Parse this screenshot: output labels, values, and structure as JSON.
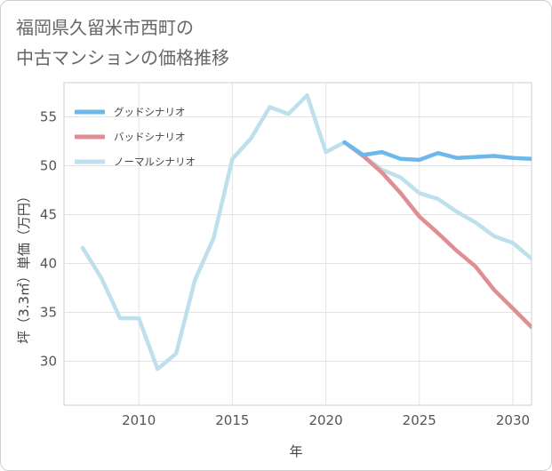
{
  "title": {
    "line1": "福岡県久留米市西町の",
    "line2": "中古マンションの価格推移"
  },
  "chart_data": {
    "type": "line",
    "xlabel": "年",
    "ylabel": "坪（3.3㎡）単価（万円）",
    "xlim": [
      2006,
      2031
    ],
    "ylim": [
      25.5,
      58.5
    ],
    "xticks": [
      2010,
      2015,
      2020,
      2025,
      2030
    ],
    "yticks": [
      30,
      35,
      40,
      45,
      50,
      55
    ],
    "grid": true,
    "legend_position": "top-left",
    "series": [
      {
        "name": "グッドシナリオ",
        "color": "#6cb8ea",
        "x": [
          2021,
          2022,
          2023,
          2024,
          2025,
          2026,
          2027,
          2028,
          2029,
          2030,
          2031
        ],
        "values": [
          52.4,
          51.1,
          51.4,
          50.7,
          50.6,
          51.3,
          50.8,
          50.9,
          51.0,
          50.8,
          50.7
        ]
      },
      {
        "name": "バッドシナリオ",
        "color": "#e08e94",
        "x": [
          2021,
          2022,
          2023,
          2024,
          2025,
          2026,
          2027,
          2028,
          2029,
          2030,
          2031
        ],
        "values": [
          52.4,
          51.0,
          49.3,
          47.2,
          44.8,
          43.1,
          41.3,
          39.7,
          37.3,
          35.4,
          33.5
        ]
      },
      {
        "name": "ノーマルシナリオ",
        "color": "#bde0ec",
        "x": [
          2007,
          2008,
          2009,
          2010,
          2011,
          2012,
          2013,
          2014,
          2015,
          2016,
          2017,
          2018,
          2019,
          2020,
          2021,
          2022,
          2023,
          2024,
          2025,
          2026,
          2027,
          2028,
          2029,
          2030,
          2031
        ],
        "values": [
          41.6,
          38.5,
          34.4,
          34.4,
          29.2,
          30.8,
          38.3,
          42.6,
          50.7,
          52.8,
          56.0,
          55.3,
          57.2,
          51.4,
          52.4,
          51.0,
          49.6,
          48.8,
          47.2,
          46.6,
          45.3,
          44.2,
          42.8,
          42.1,
          40.5
        ]
      }
    ]
  }
}
